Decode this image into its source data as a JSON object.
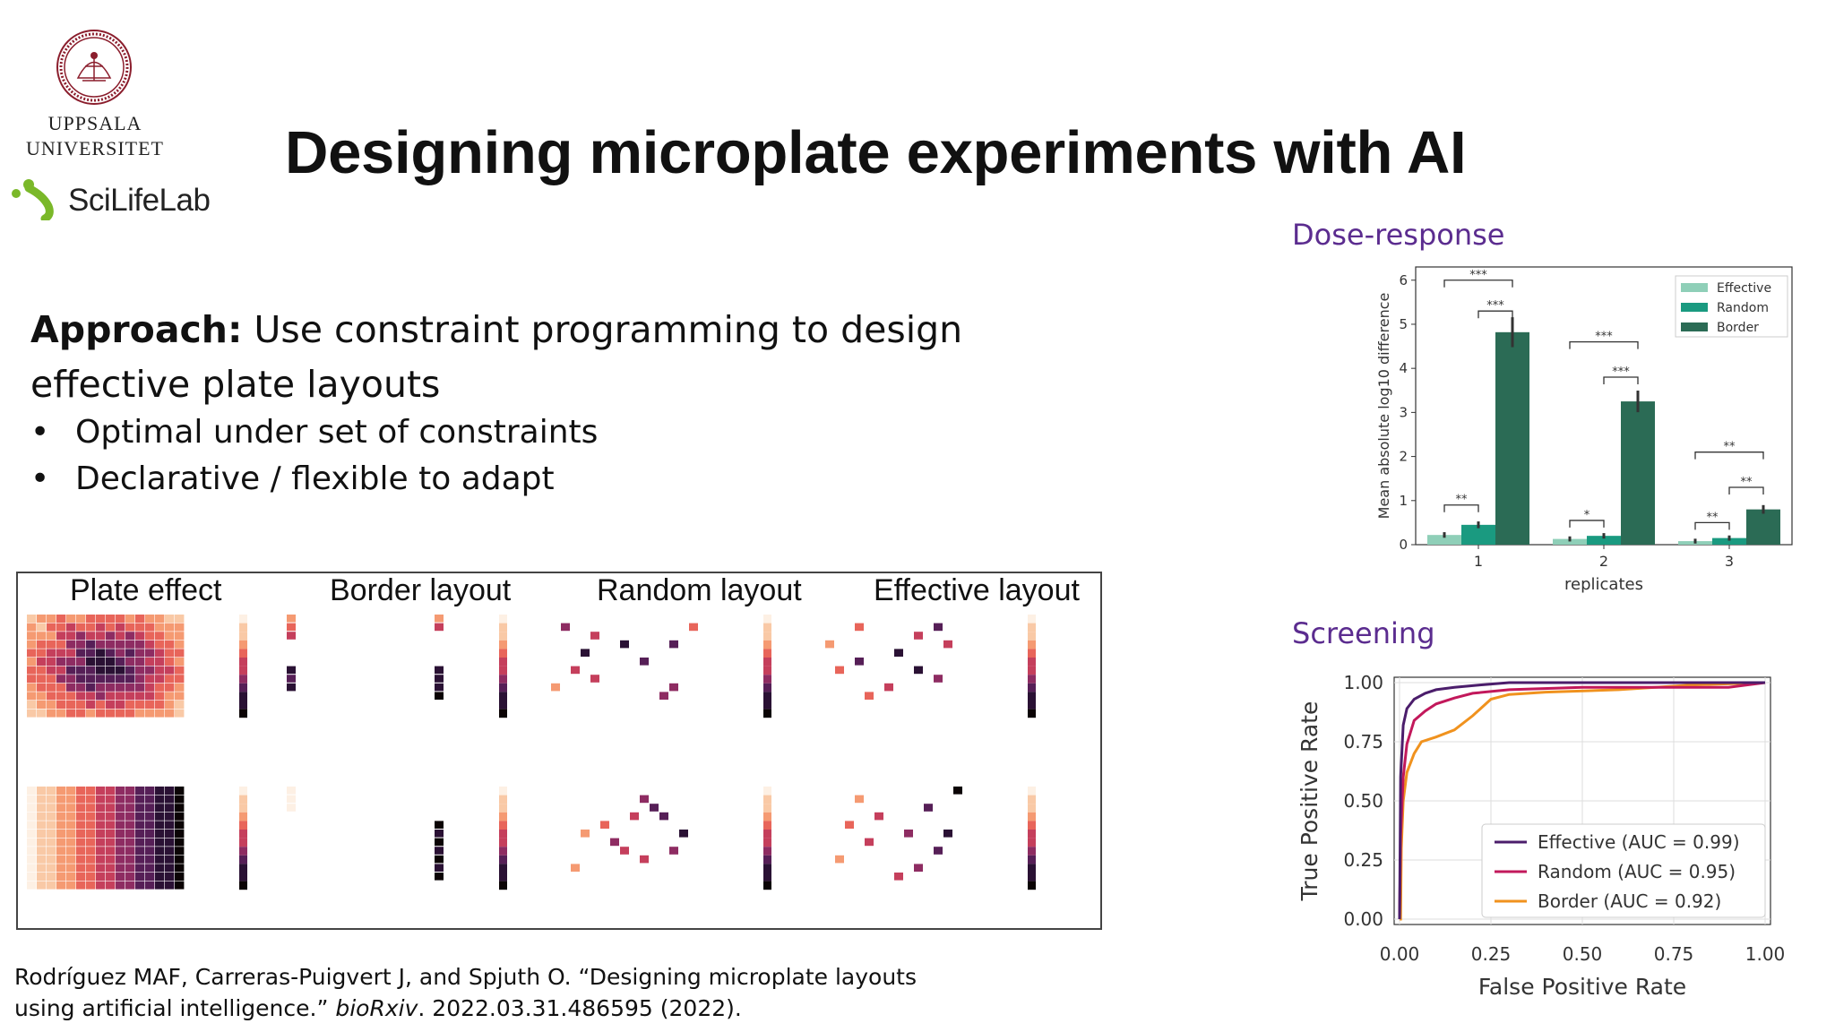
{
  "logo": {
    "university_line1": "UPPSALA",
    "university_line2": "UNIVERSITET",
    "scilifelab": "SciLifeLab"
  },
  "title": "Designing microplate experiments with AI",
  "approach": {
    "label": "Approach:",
    "text": " Use constraint programming to design effective plate layouts",
    "bullets": [
      "Optimal under set of constraints",
      "Declarative / flexible to adapt"
    ]
  },
  "plate_figure": {
    "titles": [
      "Plate effect",
      "Border layout",
      "Random layout",
      "Effective layout"
    ]
  },
  "citation": {
    "line1": "Rodríguez MAF, Carreras-Puigvert J, and Spjuth O. “Designing microplate layouts",
    "line2_pre": "using artificial intelligence.” ",
    "journal": "bioRxiv",
    "line2_post": ". 2022.03.31.486595 (2022)."
  },
  "colors": {
    "effective_bar": "#8fcfb8",
    "random_bar": "#1a9a80",
    "border_bar": "#2b6b55",
    "effective_roc": "#4b1d6b",
    "random_roc": "#c2185b",
    "border_roc": "#f0921e",
    "section_label": "#5b2c8f"
  },
  "chart_data": [
    {
      "type": "bar",
      "section_label": "Dose-response",
      "xlabel": "replicates",
      "ylabel": "Mean absolute log10 difference",
      "categories": [
        "1",
        "2",
        "3"
      ],
      "ylim": [
        0,
        6.3
      ],
      "yticks": [
        "0",
        "1",
        "2",
        "3",
        "4",
        "5",
        "6"
      ],
      "legend_position": "top-right",
      "series": [
        {
          "name": "Effective",
          "values": [
            0.22,
            0.13,
            0.08
          ]
        },
        {
          "name": "Random",
          "values": [
            0.45,
            0.2,
            0.15
          ]
        },
        {
          "name": "Border",
          "values": [
            4.82,
            3.25,
            0.8
          ]
        }
      ],
      "significance": [
        {
          "group": 0,
          "label": "***",
          "level": 6.0
        },
        {
          "group": 0,
          "label": "***",
          "level": 5.3
        },
        {
          "group": 0,
          "label": "**",
          "level": 0.9
        },
        {
          "group": 1,
          "label": "***",
          "level": 4.6
        },
        {
          "group": 1,
          "label": "***",
          "level": 3.8
        },
        {
          "group": 1,
          "label": "*",
          "level": 0.55
        },
        {
          "group": 2,
          "label": "**",
          "level": 2.1
        },
        {
          "group": 2,
          "label": "**",
          "level": 1.3
        },
        {
          "group": 2,
          "label": "**",
          "level": 0.5
        }
      ]
    },
    {
      "type": "line",
      "section_label": "Screening",
      "xlabel": "False Positive Rate",
      "ylabel": "True Positive Rate",
      "xlim": [
        0,
        1
      ],
      "ylim": [
        0,
        1
      ],
      "xticks": [
        "0.00",
        "0.25",
        "0.50",
        "0.75",
        "1.00"
      ],
      "yticks": [
        "0.00",
        "0.25",
        "0.50",
        "0.75",
        "1.00"
      ],
      "legend_position": "lower-right",
      "grid": true,
      "series": [
        {
          "name": "Effective (AUC = 0.99)",
          "x": [
            0,
            0.003,
            0.01,
            0.02,
            0.04,
            0.07,
            0.1,
            0.15,
            0.22,
            0.3,
            0.45,
            0.6,
            1.0
          ],
          "y": [
            0,
            0.6,
            0.82,
            0.89,
            0.93,
            0.955,
            0.97,
            0.98,
            0.99,
            1.0,
            1.0,
            1.0,
            1.0
          ]
        },
        {
          "name": "Random (AUC = 0.95)",
          "x": [
            0,
            0.003,
            0.01,
            0.02,
            0.04,
            0.07,
            0.1,
            0.15,
            0.2,
            0.3,
            0.5,
            0.7,
            0.9,
            1.0
          ],
          "y": [
            0,
            0.35,
            0.6,
            0.74,
            0.84,
            0.88,
            0.91,
            0.935,
            0.955,
            0.97,
            0.98,
            0.98,
            0.98,
            1.0
          ]
        },
        {
          "name": "Border (AUC = 0.92)",
          "x": [
            0,
            0.003,
            0.005,
            0.01,
            0.02,
            0.04,
            0.06,
            0.1,
            0.15,
            0.2,
            0.25,
            0.3,
            0.4,
            0.6,
            0.8,
            1.0
          ],
          "y": [
            0,
            0.0,
            0.3,
            0.5,
            0.62,
            0.7,
            0.75,
            0.77,
            0.8,
            0.86,
            0.93,
            0.95,
            0.96,
            0.97,
            0.99,
            1.0
          ]
        }
      ]
    }
  ]
}
